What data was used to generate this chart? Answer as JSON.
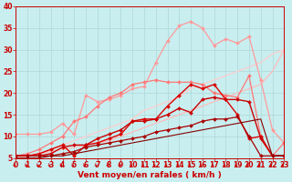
{
  "background_color": "#c8eef0",
  "grid_color": "#b0d8d8",
  "x_min": 0,
  "x_max": 23,
  "y_min": 5,
  "y_max": 40,
  "y_ticks": [
    5,
    10,
    15,
    20,
    25,
    30,
    35,
    40
  ],
  "xlabel": "Vent moyen/en rafales ( km/h )",
  "xlabel_color": "#cc0000",
  "xlabel_fontsize": 6.5,
  "tick_color": "#cc0000",
  "tick_fontsize": 5.5,
  "series": [
    {
      "x": [
        0,
        1,
        2,
        3,
        4,
        5,
        6,
        7,
        8,
        9,
        10,
        11,
        12,
        13,
        14,
        15,
        16,
        17,
        18,
        19,
        20,
        21,
        22,
        23
      ],
      "y": [
        5,
        5.5,
        6,
        6.5,
        7,
        7.5,
        8,
        8.5,
        9,
        10,
        11,
        12,
        13,
        14,
        15,
        16,
        17,
        18,
        19,
        20,
        21,
        22,
        25,
        30
      ],
      "color": "#ffbbbb",
      "marker": null,
      "linewidth": 0.9
    },
    {
      "x": [
        0,
        1,
        2,
        3,
        4,
        5,
        6,
        7,
        8,
        9,
        10,
        11,
        12,
        13,
        14,
        15,
        16,
        17,
        18,
        19,
        20,
        21,
        22,
        23
      ],
      "y": [
        5,
        5.5,
        6,
        7,
        8,
        9,
        10,
        11,
        12,
        13,
        14,
        16,
        17,
        18,
        19,
        21,
        22,
        23,
        24,
        25,
        26,
        27,
        29,
        30
      ],
      "color": "#ffcccc",
      "marker": null,
      "linewidth": 0.9
    },
    {
      "x": [
        0,
        1,
        2,
        3,
        4,
        5,
        6,
        7,
        8,
        9,
        10,
        11,
        12,
        13,
        14,
        15,
        16,
        17,
        18,
        19,
        20,
        21,
        22,
        23
      ],
      "y": [
        10.5,
        10.5,
        10.5,
        11,
        13,
        10.5,
        19.5,
        18,
        18.5,
        19.5,
        21,
        21.5,
        27,
        32,
        35.5,
        36.5,
        35,
        31,
        32.5,
        31.5,
        33,
        23,
        11.5,
        8.5
      ],
      "color": "#ff9999",
      "marker": "D",
      "markersize": 2.0,
      "linewidth": 0.9
    },
    {
      "x": [
        0,
        1,
        2,
        3,
        4,
        5,
        6,
        7,
        8,
        9,
        10,
        11,
        12,
        13,
        14,
        15,
        16,
        17,
        18,
        19,
        20,
        21,
        22,
        23
      ],
      "y": [
        5.5,
        6,
        7,
        8.5,
        10,
        13.5,
        14.5,
        17,
        19,
        20,
        22,
        22.5,
        23,
        22.5,
        22.5,
        22.5,
        22,
        20,
        19.5,
        19,
        24,
        10,
        5.5,
        8.5
      ],
      "color": "#ff7777",
      "marker": "D",
      "markersize": 2.0,
      "linewidth": 0.9
    },
    {
      "x": [
        0,
        1,
        2,
        3,
        4,
        5,
        6,
        7,
        8,
        9,
        10,
        11,
        12,
        13,
        14,
        15,
        16,
        17,
        18,
        19,
        20,
        21,
        22,
        23
      ],
      "y": [
        5.5,
        5.5,
        6,
        7,
        8,
        5.5,
        8,
        8.5,
        9.5,
        10.5,
        13.5,
        14,
        14,
        17,
        19.5,
        22,
        21,
        22,
        18.5,
        15,
        9.5,
        10,
        5.5,
        5.5
      ],
      "color": "#dd0000",
      "marker": "D",
      "markersize": 2.0,
      "linewidth": 1.0
    },
    {
      "x": [
        0,
        1,
        2,
        3,
        4,
        5,
        6,
        7,
        8,
        9,
        10,
        11,
        12,
        13,
        14,
        15,
        16,
        17,
        18,
        19,
        20,
        21,
        22,
        23
      ],
      "y": [
        5.5,
        5.5,
        5.5,
        6,
        7.5,
        8,
        8,
        9.5,
        10.5,
        11.5,
        13.5,
        13.5,
        14,
        15,
        16.5,
        15.5,
        18.5,
        19,
        18.5,
        18.5,
        18,
        9.5,
        5.5,
        5.5
      ],
      "color": "#cc0000",
      "marker": "D",
      "markersize": 2.0,
      "linewidth": 1.0
    },
    {
      "x": [
        0,
        1,
        2,
        3,
        4,
        5,
        6,
        7,
        8,
        9,
        10,
        11,
        12,
        13,
        14,
        15,
        16,
        17,
        18,
        19,
        20,
        21,
        22,
        23
      ],
      "y": [
        5.5,
        5.5,
        5.5,
        5.5,
        6,
        6.5,
        7.5,
        8,
        8.5,
        9,
        9.5,
        10,
        11,
        11.5,
        12,
        12.5,
        13.5,
        14,
        14,
        14.5,
        10,
        5.5,
        5.5,
        5.5
      ],
      "color": "#aa0000",
      "marker": "D",
      "markersize": 2.0,
      "linewidth": 0.9
    },
    {
      "x": [
        0,
        1,
        2,
        3,
        4,
        5,
        6,
        7,
        8,
        9,
        10,
        11,
        12,
        13,
        14,
        15,
        16,
        17,
        18,
        19,
        20,
        21,
        22,
        23
      ],
      "y": [
        5,
        5,
        5,
        5.5,
        5.5,
        6,
        6.5,
        7,
        7.5,
        8,
        8.5,
        9,
        9.5,
        10,
        10.5,
        11,
        11.5,
        12,
        12.5,
        13,
        13.5,
        14,
        5.5,
        5.5
      ],
      "color": "#880000",
      "marker": null,
      "linewidth": 0.8
    }
  ]
}
